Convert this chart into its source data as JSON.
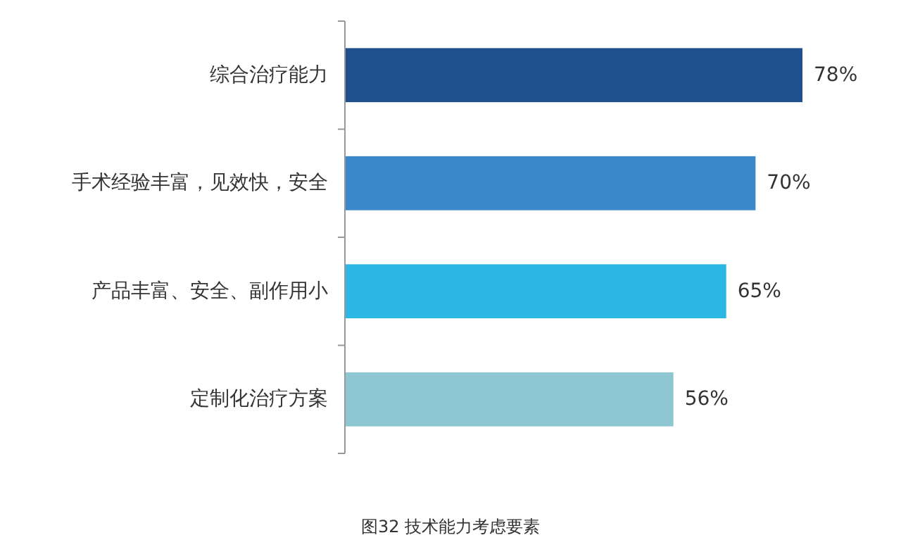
{
  "chart_data": {
    "type": "bar",
    "orientation": "horizontal",
    "categories": [
      "综合治疗能力",
      "手术经验丰富，见效快，安全",
      "产品丰富、安全、副作用小",
      "定制化治疗方案"
    ],
    "values": [
      78,
      70,
      65,
      56
    ],
    "colors": [
      "#1f4f8d",
      "#3a88c9",
      "#2bb7e1",
      "#8ec7d1"
    ],
    "value_labels": [
      "78%",
      "70%",
      "65%",
      "56%"
    ],
    "annotations": [
      "图32  技术能力考虑要素"
    ]
  }
}
